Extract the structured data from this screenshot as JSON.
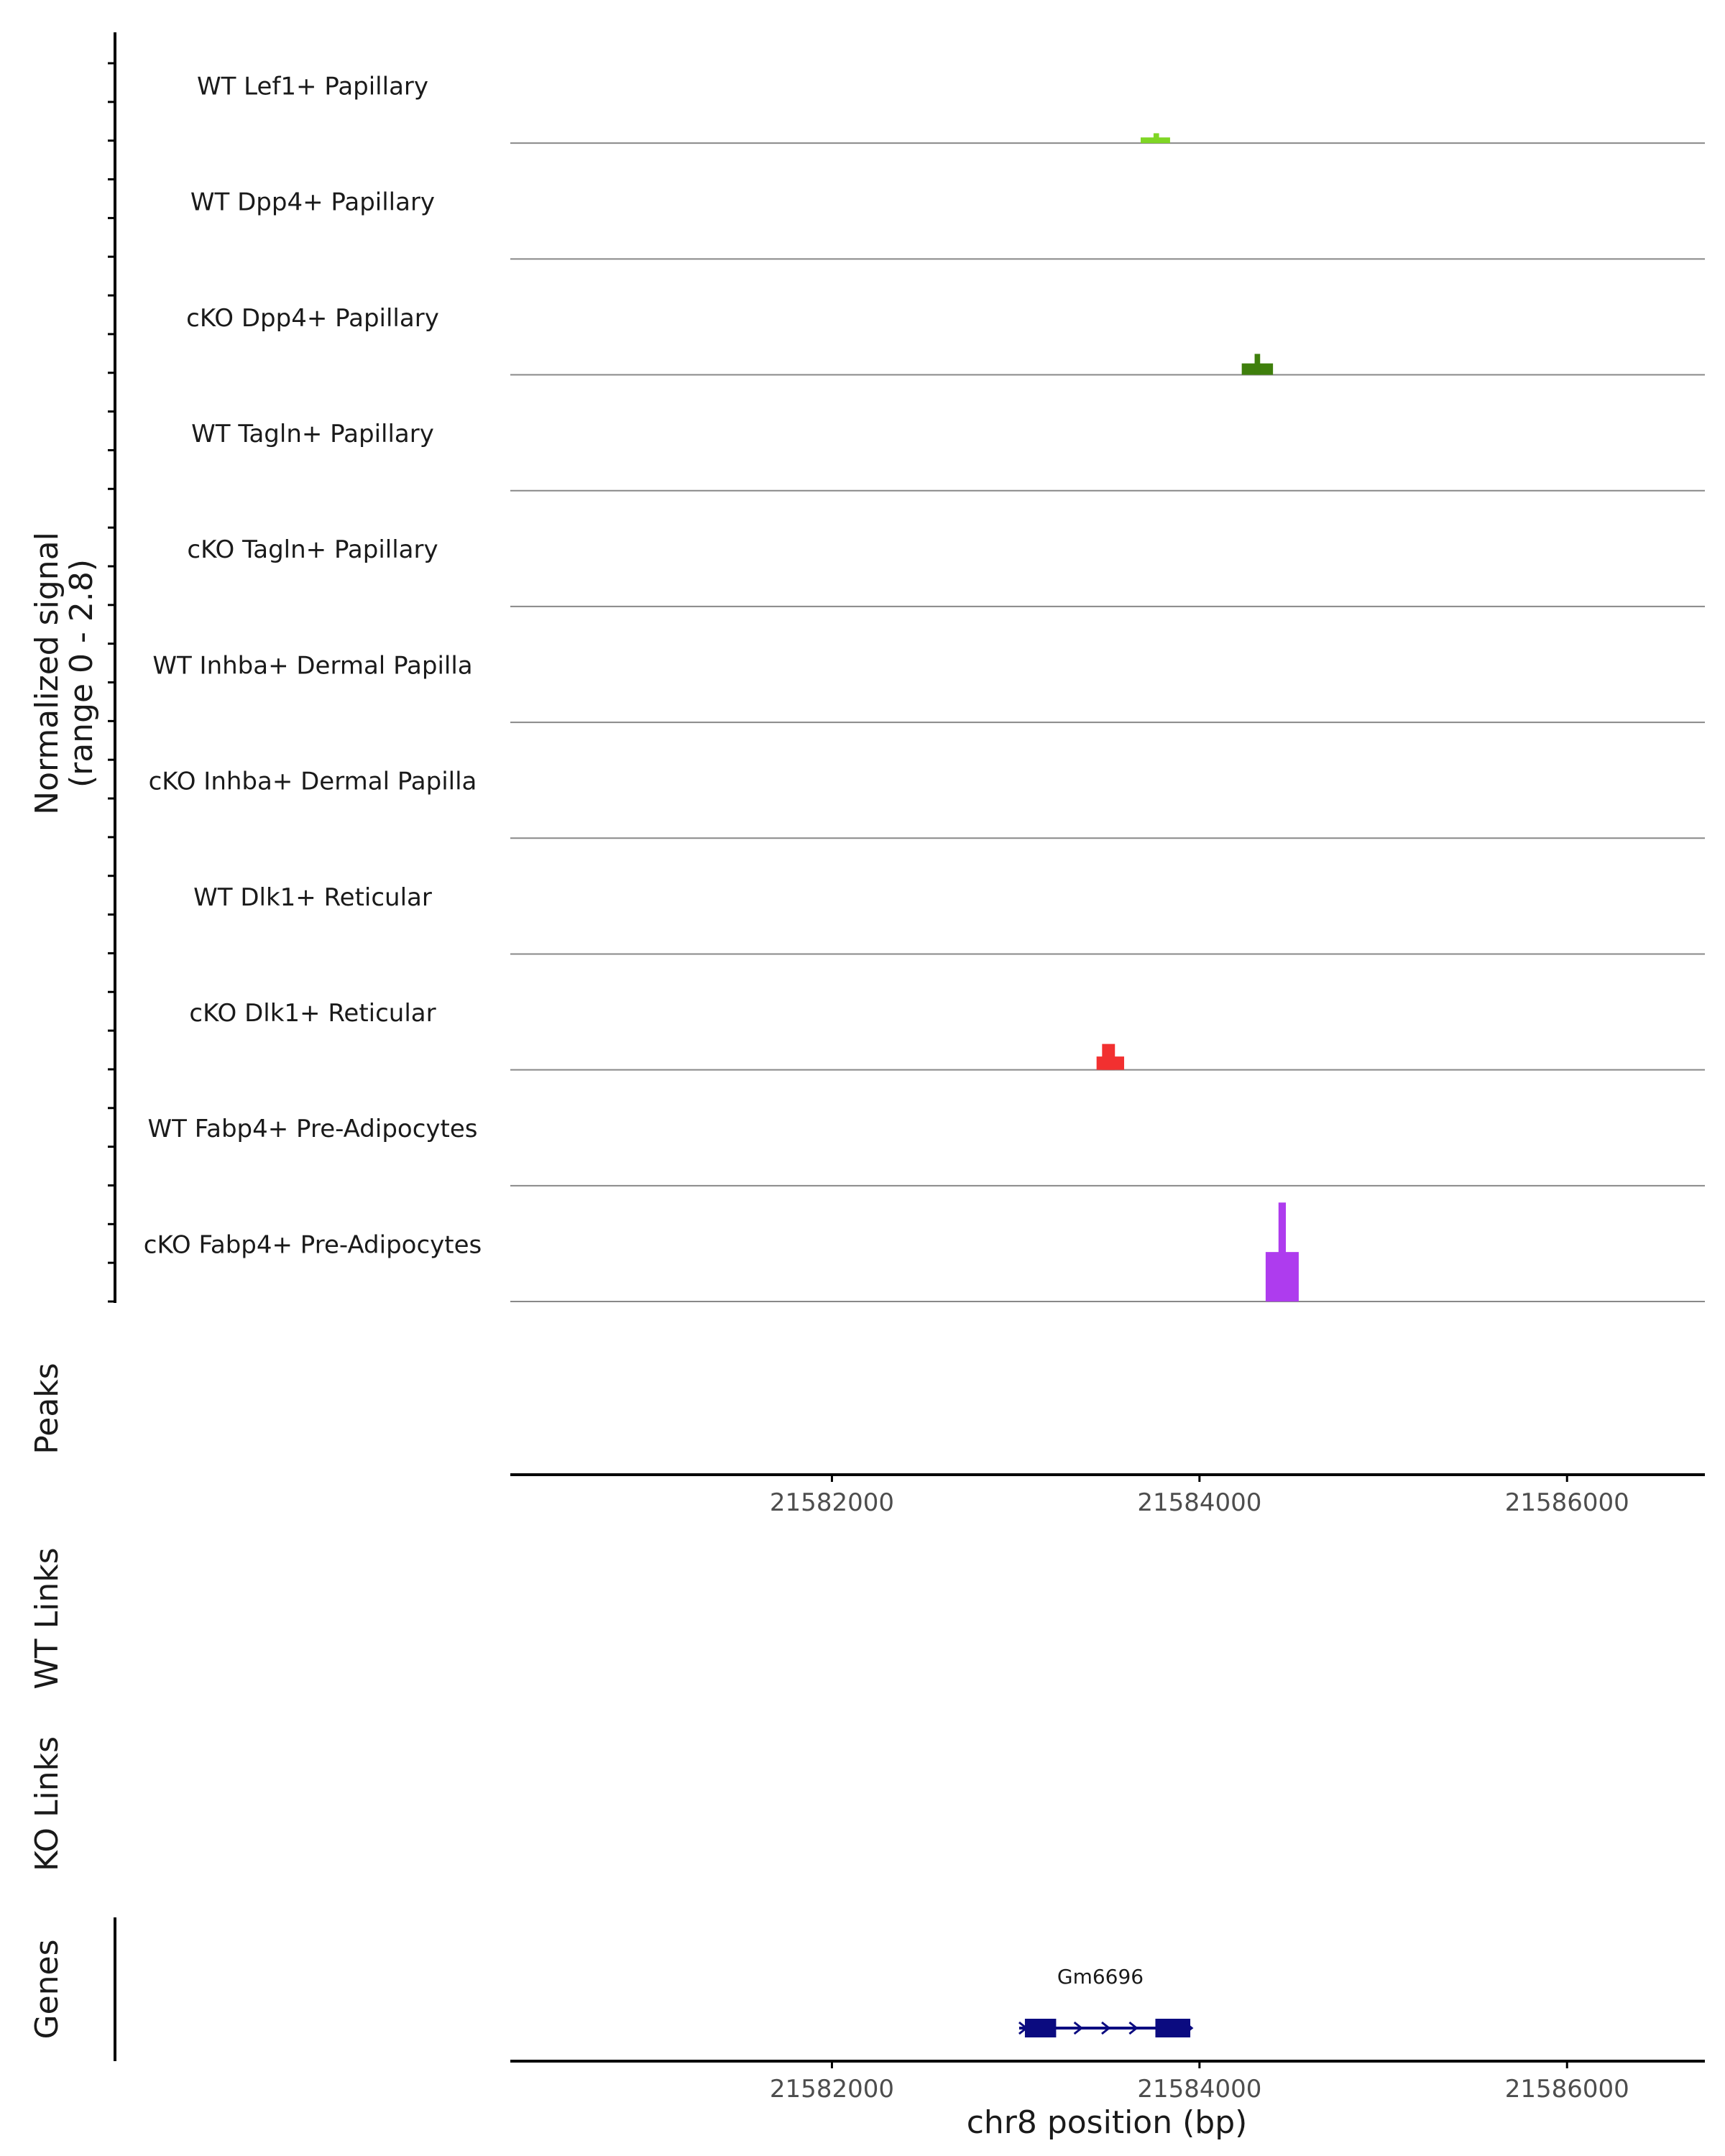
{
  "chart_data": {
    "type": "coverage",
    "title": "",
    "ylabel": "Normalized signal\n(range 0 - 2.8)",
    "ylabel_lines": [
      "Normalized signal",
      "(range 0 - 2.8)"
    ],
    "signal_range": [
      0,
      2.8
    ],
    "region": {
      "chrom": "chr8",
      "start": 21580250,
      "end": 21586750
    },
    "xlabel": "chr8 position (bp)",
    "x_ticks": [
      21582000,
      21584000,
      21586000
    ],
    "x_tick_labels": [
      "21582000",
      "21584000",
      "21586000"
    ],
    "tracks": [
      {
        "name": "WT Lef1+ Papillary",
        "color": "#7FD624",
        "peaks": [
          {
            "start": 21583680,
            "end": 21583840,
            "value": 0.15
          },
          {
            "start": 21583750,
            "end": 21583780,
            "value": 0.26
          }
        ]
      },
      {
        "name": "WT Dpp4+ Papillary",
        "color": "#62B120",
        "peaks": []
      },
      {
        "name": "cKO Dpp4+ Papillary",
        "color": "#3F7F0C",
        "peaks": [
          {
            "start": 21584230,
            "end": 21584400,
            "value": 0.3
          },
          {
            "start": 21584300,
            "end": 21584330,
            "value": 0.55
          }
        ]
      },
      {
        "name": "WT Tagln+ Papillary",
        "color": "#2D6E10",
        "peaks": []
      },
      {
        "name": "cKO Tagln+ Papillary",
        "color": "#1F5C0A",
        "peaks": []
      },
      {
        "name": "WT Inhba+ Dermal Papilla",
        "color": "#E8402A",
        "peaks": []
      },
      {
        "name": "cKO Inhba+ Dermal Papilla",
        "color": "#E83030",
        "peaks": []
      },
      {
        "name": "WT Dlk1+ Reticular",
        "color": "#F03030",
        "peaks": []
      },
      {
        "name": "cKO Dlk1+ Reticular",
        "color": "#F23030",
        "peaks": [
          {
            "start": 21583440,
            "end": 21583590,
            "value": 0.35
          },
          {
            "start": 21583470,
            "end": 21583540,
            "value": 0.68
          }
        ]
      },
      {
        "name": "WT Fabp4+ Pre-Adipocytes",
        "color": "#B23CEE",
        "peaks": []
      },
      {
        "name": "cKO Fabp4+ Pre-Adipocytes",
        "color": "#AE3CEE",
        "peaks": [
          {
            "start": 21584360,
            "end": 21584540,
            "value": 1.3
          },
          {
            "start": 21584430,
            "end": 21584470,
            "value": 2.6
          }
        ]
      }
    ],
    "panels": [
      "Peaks",
      "WT Links",
      "KO Links",
      "Genes"
    ],
    "genes": [
      {
        "name": "Gm6696",
        "start": 21583050,
        "end": 21583950,
        "strand": "+",
        "color": "#0B0B80",
        "exons": [
          {
            "start": 21583050,
            "end": 21583220
          },
          {
            "start": 21583760,
            "end": 21583950
          }
        ]
      }
    ]
  },
  "colors": {
    "baseline": "#888888",
    "axis": "#000000"
  }
}
